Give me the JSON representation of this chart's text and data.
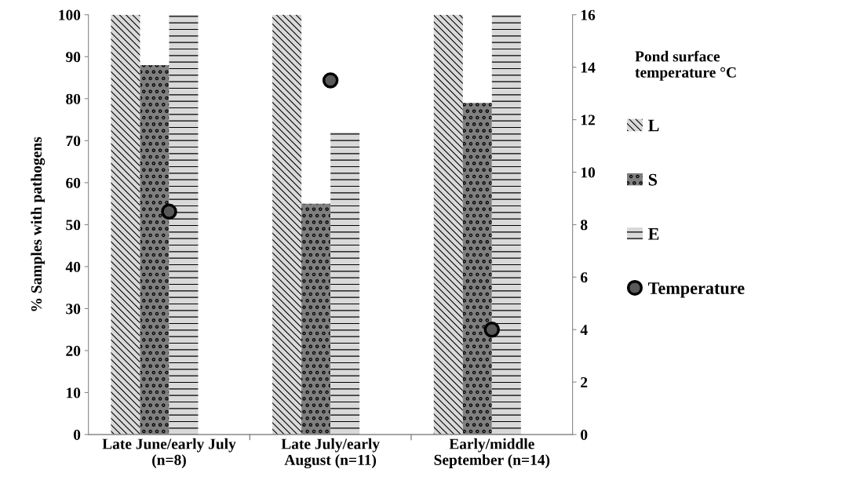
{
  "chart_data": {
    "type": "bar",
    "categories": [
      "Late June/early July\n(n=8)",
      "Late July/early\nAugust (n=11)",
      "Early/middle\nSeptember (n=14)"
    ],
    "ylabel": "% Samples with pathogens",
    "legend_title": "Pond surface\ntemperature °C",
    "legend": "right",
    "ylim": [
      0,
      100
    ],
    "yticks": [
      0,
      10,
      20,
      30,
      40,
      50,
      60,
      70,
      80,
      90,
      100
    ],
    "y2lim": [
      0,
      16
    ],
    "y2ticks": [
      0,
      2,
      4,
      6,
      8,
      10,
      12,
      14,
      16
    ],
    "grid": false,
    "series": [
      {
        "name": "L",
        "color": "#d9d9d9",
        "values": [
          100,
          100,
          100
        ]
      },
      {
        "name": "S",
        "color": "#7f7f7f",
        "values": [
          88,
          55,
          79
        ]
      },
      {
        "name": "E",
        "color": "#d9d9d9",
        "values": [
          100,
          72,
          100
        ]
      },
      {
        "name": "Temperature",
        "type": "scatter",
        "axis": "y2",
        "marker": "circle",
        "color": "#595959",
        "values": [
          8.5,
          13.5,
          4.0
        ]
      }
    ]
  }
}
